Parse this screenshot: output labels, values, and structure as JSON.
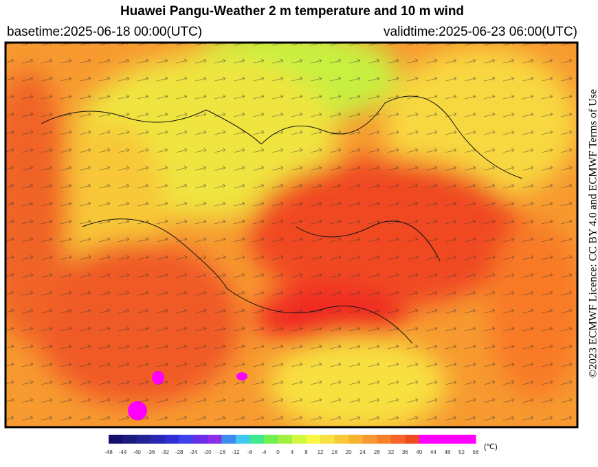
{
  "header": {
    "title": "Huawei Pangu-Weather  2 m temperature and 10 m wind",
    "basetime": "basetime:2025-06-18 00:00(UTC)",
    "validtime": "validtime:2025-06-23 06:00(UTC)"
  },
  "license": "©2023 ECMWF Licence: CC BY 4.0 and ECMWF Terms of Use",
  "colorbar": {
    "unit": "(℃)",
    "ticks": [
      -48,
      -44,
      -40,
      -36,
      -32,
      -28,
      -24,
      -20,
      -16,
      -12,
      -8,
      -4,
      0,
      4,
      8,
      12,
      16,
      20,
      24,
      28,
      32,
      36,
      40,
      44,
      48,
      52,
      56
    ],
    "colors": [
      "#16106a",
      "#1c1c80",
      "#232396",
      "#2828b4",
      "#2f2fd6",
      "#4040f0",
      "#6a2de8",
      "#8a2ee8",
      "#3c8cf0",
      "#40c8f0",
      "#40e890",
      "#70f050",
      "#a0f040",
      "#d0f840",
      "#f8f840",
      "#f8e040",
      "#f8c838",
      "#f8b030",
      "#f89830",
      "#f88028",
      "#f86428",
      "#f04a20",
      "#ff00ff",
      "#ff00ff",
      "#ff00ff",
      "#ff00ff"
    ]
  }
}
